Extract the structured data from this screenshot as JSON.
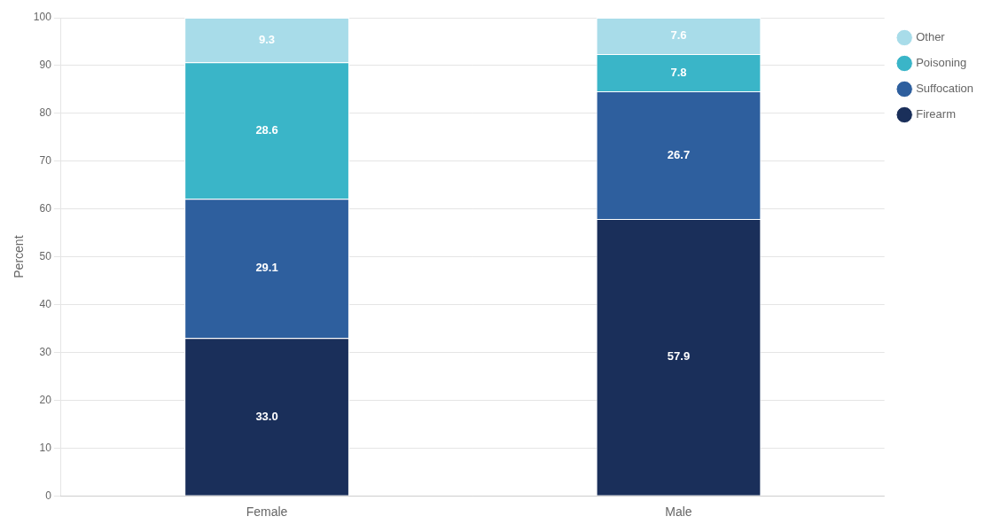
{
  "chart_data": {
    "type": "bar",
    "stacked": true,
    "categories": [
      "Female",
      "Male"
    ],
    "series": [
      {
        "name": "Firearm",
        "color": "#1a2f5a",
        "values": [
          33.0,
          57.9
        ],
        "value_labels": [
          "33.0",
          "57.9"
        ]
      },
      {
        "name": "Suffocation",
        "color": "#2e5f9e",
        "values": [
          29.1,
          26.7
        ],
        "value_labels": [
          "29.1",
          "26.7"
        ]
      },
      {
        "name": "Poisoning",
        "color": "#3ab5c8",
        "values": [
          28.6,
          7.8
        ],
        "value_labels": [
          "28.6",
          "7.8"
        ]
      },
      {
        "name": "Other",
        "color": "#a8dce9",
        "values": [
          9.3,
          7.6
        ],
        "value_labels": [
          "9.3",
          "7.6"
        ]
      }
    ],
    "ylabel": "Percent",
    "ylim": [
      0,
      100
    ],
    "yticks": [
      0,
      10,
      20,
      30,
      40,
      50,
      60,
      70,
      80,
      90,
      100
    ],
    "grid": true,
    "legend": "right",
    "data_labels": true
  }
}
